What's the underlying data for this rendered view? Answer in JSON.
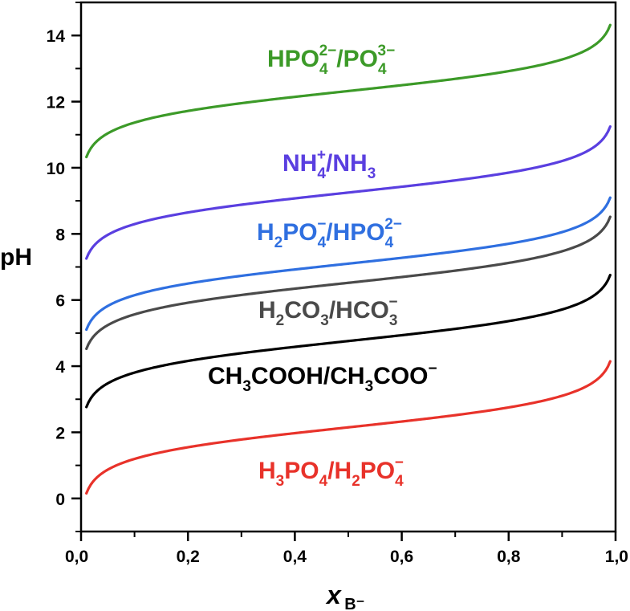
{
  "chart_data": {
    "type": "line",
    "xlabel": {
      "main": "x",
      "sub": "B⁻"
    },
    "ylabel": "pH",
    "xlim": [
      0.0,
      1.0
    ],
    "ylim": [
      -1,
      15
    ],
    "xticks": [
      0.0,
      0.2,
      0.4,
      0.6,
      0.8,
      1.0
    ],
    "xtick_labels": [
      "0,0",
      "0,2",
      "0,4",
      "0,6",
      "0,8",
      "1,0"
    ],
    "yticks": [
      0,
      2,
      4,
      6,
      8,
      10,
      12,
      14
    ],
    "ytick_labels": [
      "0",
      "2",
      "4",
      "6",
      "8",
      "10",
      "12",
      "14"
    ],
    "grid": false,
    "legend": "none",
    "x_range": [
      0.01,
      0.99
    ],
    "series": [
      {
        "id": "h3po4",
        "color": "#e8322a",
        "pKa": 2.15,
        "label": [
          {
            "t": "H"
          },
          {
            "t": "3",
            "s": "sub"
          },
          {
            "t": "PO"
          },
          {
            "t": "4",
            "s": "sub"
          },
          {
            "t": "/H"
          },
          {
            "t": "2",
            "s": "sub"
          },
          {
            "t": "PO"
          },
          {
            "t": "4",
            "s": "subsup",
            "sup": "−"
          }
        ]
      },
      {
        "id": "acetic",
        "color": "#000000",
        "pKa": 4.76,
        "label": [
          {
            "t": "CH"
          },
          {
            "t": "3",
            "s": "sub"
          },
          {
            "t": "COOH/CH"
          },
          {
            "t": "3",
            "s": "sub"
          },
          {
            "t": "COO"
          },
          {
            "t": "−",
            "s": "sup"
          }
        ]
      },
      {
        "id": "carbonic",
        "color": "#4a4a4a",
        "pKa": 6.52,
        "label": [
          {
            "t": "H"
          },
          {
            "t": "2",
            "s": "sub"
          },
          {
            "t": "CO"
          },
          {
            "t": "3",
            "s": "sub"
          },
          {
            "t": "/HCO"
          },
          {
            "t": "3",
            "s": "subsup",
            "sup": "−"
          }
        ]
      },
      {
        "id": "h2po4",
        "color": "#2f6fe0",
        "pKa": 7.1,
        "label": [
          {
            "t": "H"
          },
          {
            "t": "2",
            "s": "sub"
          },
          {
            "t": "PO"
          },
          {
            "t": "4",
            "s": "subsup",
            "sup": "−"
          },
          {
            "t": "/HPO"
          },
          {
            "t": "4",
            "s": "subsup",
            "sup": "2−"
          }
        ]
      },
      {
        "id": "ammonium",
        "color": "#5a3fe0",
        "pKa": 9.25,
        "label": [
          {
            "t": "NH"
          },
          {
            "t": "4",
            "s": "subsup",
            "sup": "+"
          },
          {
            "t": "/NH"
          },
          {
            "t": "3",
            "s": "sub"
          }
        ]
      },
      {
        "id": "hpo4",
        "color": "#3c9a28",
        "pKa": 12.32,
        "label": [
          {
            "t": "HPO"
          },
          {
            "t": "4",
            "s": "subsup",
            "sup": "2−"
          },
          {
            "t": "/PO"
          },
          {
            "t": "4",
            "s": "subsup",
            "sup": "3−"
          }
        ]
      }
    ]
  }
}
